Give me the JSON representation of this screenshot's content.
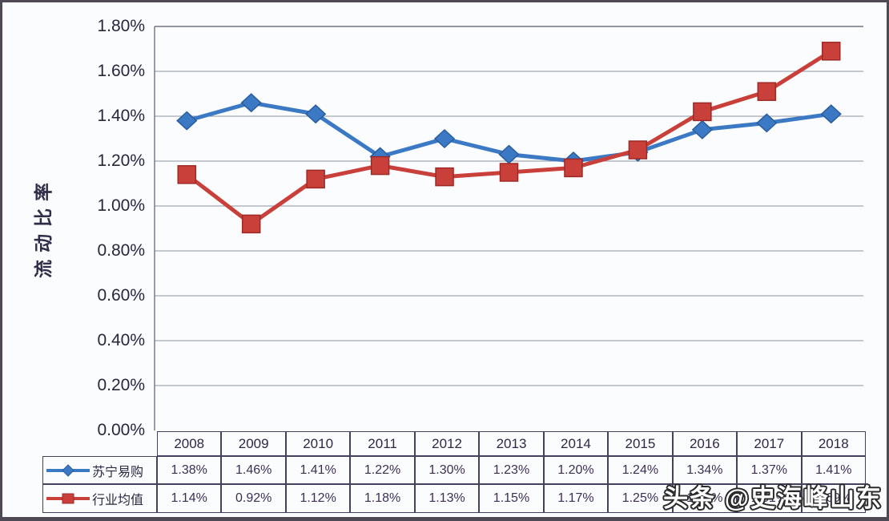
{
  "watermark": "头条 @史海峰山东",
  "chart_data": {
    "type": "line",
    "title": "",
    "xlabel": "",
    "ylabel": "流动比率",
    "ylim": [
      0,
      1.8
    ],
    "ytick_step": 0.2,
    "ytick_labels": [
      "0.00%",
      "0.20%",
      "0.40%",
      "0.60%",
      "0.80%",
      "1.00%",
      "1.20%",
      "1.40%",
      "1.60%",
      "1.80%"
    ],
    "grid": true,
    "legend_position": "table-left",
    "categories": [
      "2008",
      "2009",
      "2010",
      "2011",
      "2012",
      "2013",
      "2014",
      "2015",
      "2016",
      "2017",
      "2018"
    ],
    "series": [
      {
        "name": "苏宁易购",
        "marker": "diamond",
        "color": "#3b79c5",
        "edge": "#2a5d9e",
        "values": [
          1.38,
          1.46,
          1.41,
          1.22,
          1.3,
          1.23,
          1.2,
          1.24,
          1.34,
          1.37,
          1.41
        ],
        "labels": [
          "1.38%",
          "1.46%",
          "1.41%",
          "1.22%",
          "1.30%",
          "1.23%",
          "1.20%",
          "1.24%",
          "1.34%",
          "1.37%",
          "1.41%"
        ]
      },
      {
        "name": "行业均值",
        "marker": "square",
        "color": "#c9403b",
        "edge": "#9e2a26",
        "values": [
          1.14,
          0.92,
          1.12,
          1.18,
          1.13,
          1.15,
          1.17,
          1.25,
          1.42,
          1.51,
          1.69
        ],
        "labels": [
          "1.14%",
          "0.92%",
          "1.12%",
          "1.18%",
          "1.13%",
          "1.15%",
          "1.17%",
          "1.25%",
          "1.42%",
          "1.51%",
          "1.69%"
        ]
      }
    ],
    "colors": {
      "gridline": "#8d93a0",
      "axis": "#6f7480",
      "tick_text": "#26263e",
      "table_border": "#454060",
      "table_text": "#3c2f56"
    }
  }
}
